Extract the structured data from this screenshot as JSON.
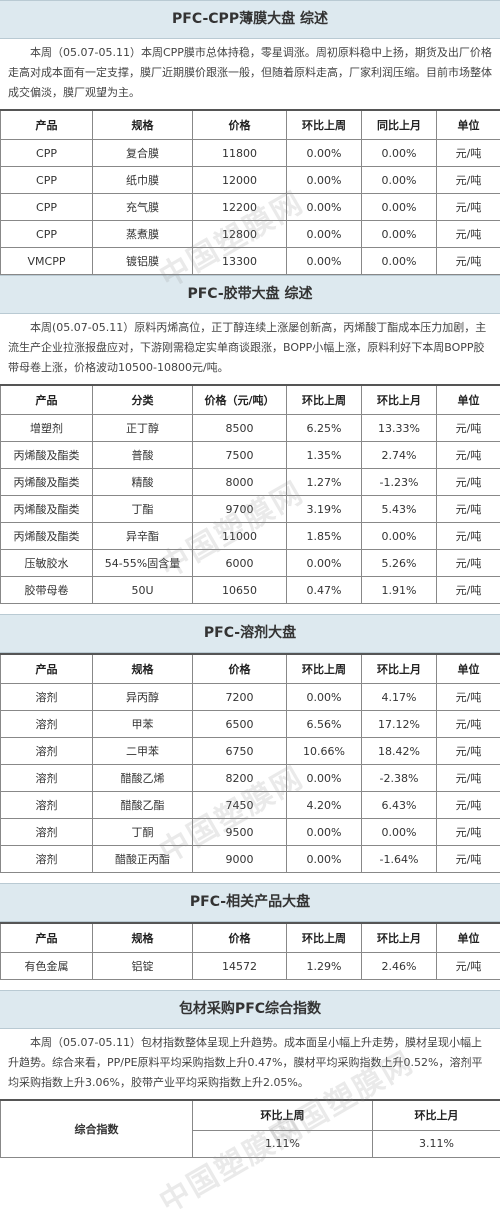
{
  "watermark": "中国塑膜网",
  "cpp": {
    "title": "PFC-CPP薄膜大盘 综述",
    "summary": "本周（05.07-05.11）本周CPP膜市总体持稳，零星调涨。周初原料稳中上扬，期货及出厂价格走高对成本面有一定支撑，膜厂近期膜价跟涨一般，但随着原料走高，厂家利润压缩。目前市场整体成交偏淡，膜厂观望为主。",
    "headers": [
      "产品",
      "规格",
      "价格",
      "环比上周",
      "同比上月",
      "单位"
    ],
    "rows": [
      {
        "product": "CPP",
        "spec": "复合膜",
        "price": "11800",
        "wow": "0.00%",
        "wow_t": "neu",
        "mom": "0.00%",
        "mom_t": "neu",
        "unit": "元/吨"
      },
      {
        "product": "CPP",
        "spec": "纸巾膜",
        "price": "12000",
        "wow": "0.00%",
        "wow_t": "neu",
        "mom": "0.00%",
        "mom_t": "neu",
        "unit": "元/吨"
      },
      {
        "product": "CPP",
        "spec": "充气膜",
        "price": "12200",
        "wow": "0.00%",
        "wow_t": "neu",
        "mom": "0.00%",
        "mom_t": "neu",
        "unit": "元/吨"
      },
      {
        "product": "CPP",
        "spec": "蒸煮膜",
        "price": "12800",
        "wow": "0.00%",
        "wow_t": "neu",
        "mom": "0.00%",
        "mom_t": "neu",
        "unit": "元/吨"
      },
      {
        "product": "VMCPP",
        "spec": "镀铝膜",
        "price": "13300",
        "wow": "0.00%",
        "wow_t": "neu",
        "mom": "0.00%",
        "mom_t": "neu",
        "unit": "元/吨"
      }
    ]
  },
  "tape": {
    "title": "PFC-胶带大盘 综述",
    "summary": "本周(05.07-05.11）原料丙烯高位，正丁醇连续上涨屡创新高，丙烯酸丁酯成本压力加剧，主流生产企业拉涨报盘应对，下游刚需稳定实单商谈跟涨，BOPP小幅上涨，原料利好下本周BOPP胶带母卷上涨，价格波动10500-10800元/吨。",
    "headers": [
      "产品",
      "分类",
      "价格（元/吨）",
      "环比上周",
      "环比上月",
      "单位"
    ],
    "rows": [
      {
        "product": "增塑剂",
        "spec": "正丁醇",
        "price": "8500",
        "wow": "6.25%",
        "wow_t": "pos",
        "mom": "13.33%",
        "mom_t": "pos",
        "unit": "元/吨"
      },
      {
        "product": "丙烯酸及酯类",
        "spec": "普酸",
        "price": "7500",
        "wow": "1.35%",
        "wow_t": "pos",
        "mom": "2.74%",
        "mom_t": "pos",
        "unit": "元/吨"
      },
      {
        "product": "丙烯酸及酯类",
        "spec": "精酸",
        "price": "8000",
        "wow": "1.27%",
        "wow_t": "pos",
        "mom": "-1.23%",
        "mom_t": "neg",
        "unit": "元/吨"
      },
      {
        "product": "丙烯酸及酯类",
        "spec": "丁酯",
        "price": "9700",
        "wow": "3.19%",
        "wow_t": "pos",
        "mom": "5.43%",
        "mom_t": "pos",
        "unit": "元/吨"
      },
      {
        "product": "丙烯酸及酯类",
        "spec": "异辛酯",
        "price": "11000",
        "wow": "1.85%",
        "wow_t": "pos",
        "mom": "0.00%",
        "mom_t": "neu",
        "unit": "元/吨"
      },
      {
        "product": "压敏胶水",
        "spec": "54-55%固含量",
        "price": "6000",
        "wow": "0.00%",
        "wow_t": "neu",
        "mom": "5.26%",
        "mom_t": "pos",
        "unit": "元/吨"
      },
      {
        "product": "胶带母卷",
        "spec": "50U",
        "price": "10650",
        "wow": "0.47%",
        "wow_t": "pos",
        "mom": "1.91%",
        "mom_t": "pos",
        "unit": "元/吨"
      }
    ]
  },
  "solvent": {
    "title": "PFC-溶剂大盘",
    "headers": [
      "产品",
      "规格",
      "价格",
      "环比上周",
      "环比上月",
      "单位"
    ],
    "rows": [
      {
        "product": "溶剂",
        "spec": "异丙醇",
        "price": "7200",
        "wow": "0.00%",
        "wow_t": "neu",
        "mom": "4.17%",
        "mom_t": "pos",
        "unit": "元/吨"
      },
      {
        "product": "溶剂",
        "spec": "甲苯",
        "price": "6500",
        "wow": "6.56%",
        "wow_t": "pos",
        "mom": "17.12%",
        "mom_t": "pos",
        "unit": "元/吨"
      },
      {
        "product": "溶剂",
        "spec": "二甲苯",
        "price": "6750",
        "wow": "10.66%",
        "wow_t": "pos",
        "mom": "18.42%",
        "mom_t": "pos",
        "unit": "元/吨"
      },
      {
        "product": "溶剂",
        "spec": "醋酸乙烯",
        "price": "8200",
        "wow": "0.00%",
        "wow_t": "neu",
        "mom": "-2.38%",
        "mom_t": "neg",
        "unit": "元/吨"
      },
      {
        "product": "溶剂",
        "spec": "醋酸乙酯",
        "price": "7450",
        "wow": "4.20%",
        "wow_t": "pos",
        "mom": "6.43%",
        "mom_t": "pos",
        "unit": "元/吨"
      },
      {
        "product": "溶剂",
        "spec": "丁酮",
        "price": "9500",
        "wow": "0.00%",
        "wow_t": "neu",
        "mom": "0.00%",
        "mom_t": "neu",
        "unit": "元/吨"
      },
      {
        "product": "溶剂",
        "spec": "醋酸正丙酯",
        "price": "9000",
        "wow": "0.00%",
        "wow_t": "neu",
        "mom": "-1.64%",
        "mom_t": "neg",
        "unit": "元/吨"
      }
    ]
  },
  "related": {
    "title": "PFC-相关产品大盘",
    "headers": [
      "产品",
      "规格",
      "价格",
      "环比上周",
      "环比上月",
      "单位"
    ],
    "rows": [
      {
        "product": "有色金属",
        "spec": "铝锭",
        "price": "14572",
        "wow": "1.29%",
        "wow_t": "pos",
        "mom": "2.46%",
        "mom_t": "pos",
        "unit": "元/吨"
      }
    ]
  },
  "index": {
    "title": "包材采购PFC综合指数",
    "summary": "本周（05.07-05.11）包材指数整体呈现上升趋势。成本面呈小幅上升走势，膜材呈现小幅上升趋势。综合来看，PP/PE原料平均采购指数上升0.47%，膜材平均采购指数上升0.52%，溶剂平均采购指数上升3.06%，胶带产业平均采购指数上升2.05%。",
    "label": "综合指数",
    "headers": [
      "环比上周",
      "环比上月"
    ],
    "values": [
      "1.11%",
      "3.11%"
    ]
  },
  "colors": {
    "pos": "#e60012",
    "neu": "#11a6c8",
    "neg": "#1aa34a",
    "header_bg": "#dde9ef"
  }
}
